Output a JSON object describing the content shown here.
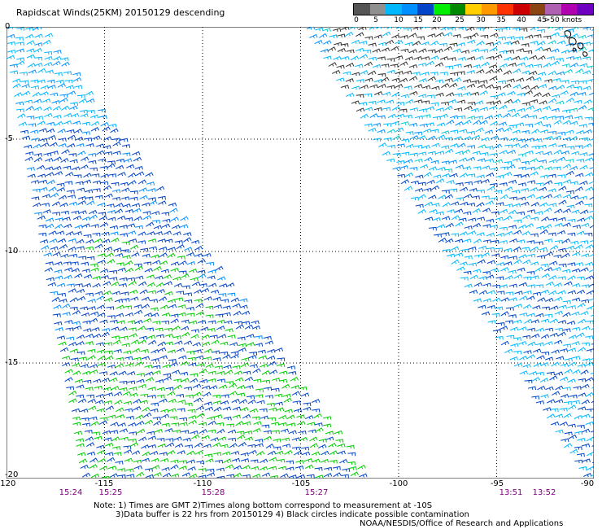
{
  "title": "Rapidscat Winds(25KM) 20150129 descending",
  "legend": {
    "colors": [
      "#555555",
      "#909090",
      "#00b8ff",
      "#0090ff",
      "#0044c8",
      "#00ee00",
      "#008800",
      "#ffd000",
      "#ff9900",
      "#ff3300",
      "#cc0000",
      "#8b4513",
      "#b060b0",
      "#b000b0",
      "#7000c0"
    ],
    "labels": [
      "0",
      "5",
      "10",
      "15",
      "20",
      "25",
      "30",
      "35",
      "40",
      "45",
      ">50 knots"
    ]
  },
  "axes": {
    "longitude_labels": [
      "-120",
      "-115",
      "-110",
      "-105",
      "-100",
      "-95",
      "-90"
    ],
    "latitude_labels": [
      "0",
      "-5",
      "-10",
      "-15",
      "-20"
    ]
  },
  "swath_times": [
    "15:24",
    "15:25",
    "15:28",
    "15:27",
    "13:51",
    "13:52"
  ],
  "notes": {
    "line1": "Note: 1) Times are GMT 2)Times along bottom correspond to measurement at -10S",
    "line2": "3)Data buffer is 22 hrs from 20150129 4) Black circles indicate possible contamination",
    "credit": "NOAA/NESDIS/Office of Research and Applications"
  }
}
